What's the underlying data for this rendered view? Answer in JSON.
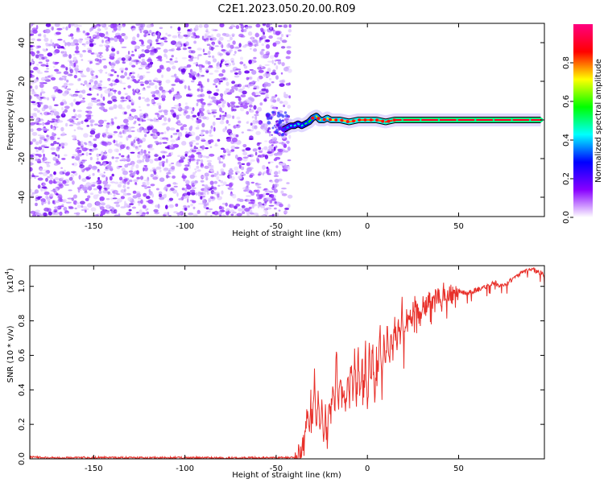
{
  "title": "C2E1.2023.050.20.00.R09",
  "chart_data": [
    {
      "type": "heatmap",
      "xlabel": "Height of straight line (km)",
      "ylabel": "Frequency (Hz)",
      "xlim": [
        -185,
        97
      ],
      "ylim": [
        -50,
        50
      ],
      "xticks": [
        -150,
        -100,
        -50,
        0,
        50
      ],
      "yticks": [
        -40,
        -20,
        0,
        20,
        40
      ],
      "colorbar": {
        "label": "Normalized spectral amplitude",
        "range": [
          0,
          1
        ],
        "ticks": [
          "0.0",
          "0.2",
          "0.4",
          "0.6",
          "0.8"
        ],
        "colors": [
          "#ffffff",
          "#8800ff",
          "#0000ff",
          "#00ffff",
          "#00ff00",
          "#ffff00",
          "#ff0000",
          "#ff0080"
        ]
      },
      "noise_region_x": [
        -185,
        -45
      ],
      "signal_trace": {
        "x": [
          -46,
          -44,
          -42,
          -40,
          -38,
          -36,
          -34,
          -32,
          -30,
          -28,
          -26,
          -24,
          -22,
          -20,
          -15,
          -10,
          -5,
          0,
          5,
          10,
          15,
          20,
          30,
          40,
          50,
          60,
          70,
          80,
          90,
          95
        ],
        "y": [
          -5,
          -4,
          -3,
          -3,
          -2,
          -3,
          -2,
          -1,
          1,
          2,
          0,
          0,
          1,
          0,
          0,
          -1,
          0,
          0,
          0,
          -1,
          0,
          0,
          0,
          0,
          0,
          0,
          0,
          0,
          0,
          0
        ],
        "amplitude": [
          0.3,
          0.35,
          0.4,
          0.45,
          0.45,
          0.45,
          0.5,
          0.55,
          0.6,
          0.65,
          0.65,
          0.7,
          0.7,
          0.7,
          0.75,
          0.75,
          0.8,
          0.8,
          0.8,
          0.8,
          0.85,
          0.9,
          0.9,
          0.9,
          0.9,
          0.9,
          0.9,
          0.9,
          0.9,
          0.9
        ]
      }
    },
    {
      "type": "line",
      "xlabel": "Height of straight line (km)",
      "ylabel": "SNR (10 * v/v)",
      "yscale_label": "(x10",
      "yscale_exp": "4",
      "yscale_close": ")",
      "xlim": [
        -185,
        97
      ],
      "ylim": [
        0,
        1.12
      ],
      "xticks": [
        -150,
        -100,
        -50,
        0,
        50
      ],
      "yticks": [
        "0.0",
        "0.2",
        "0.4",
        "0.6",
        "0.8",
        "1.0"
      ],
      "series": [
        {
          "color": "#e8302a",
          "x": [
            -185,
            -170,
            -150,
            -120,
            -100,
            -80,
            -60,
            -45,
            -40,
            -37,
            -35,
            -33,
            -32,
            -31,
            -30,
            -29,
            -28,
            -27,
            -26,
            -25,
            -24,
            -23,
            -22,
            -21,
            -20,
            -19,
            -18,
            -17,
            -16,
            -15,
            -14,
            -13,
            -12,
            -11,
            -10,
            -9,
            -8,
            -7,
            -6,
            -5,
            -4,
            -3,
            -2,
            -1,
            0,
            1,
            2,
            3,
            4,
            5,
            6,
            7,
            8,
            9,
            10,
            11,
            12,
            13,
            14,
            15,
            16,
            17,
            18,
            19,
            20,
            22,
            24,
            26,
            28,
            30,
            32,
            34,
            36,
            38,
            40,
            42,
            44,
            46,
            48,
            50,
            55,
            60,
            65,
            70,
            75,
            80,
            85,
            90,
            95,
            97
          ],
          "y": [
            0.01,
            0.005,
            0.008,
            0.006,
            0.007,
            0.005,
            0.006,
            0.007,
            0.01,
            0.03,
            0.08,
            0.25,
            0.15,
            0.35,
            0.2,
            0.5,
            0.18,
            0.4,
            0.12,
            0.3,
            0.15,
            0.28,
            0.1,
            0.33,
            0.25,
            0.42,
            0.3,
            0.65,
            0.28,
            0.5,
            0.35,
            0.43,
            0.25,
            0.45,
            0.4,
            0.55,
            0.38,
            0.6,
            0.33,
            0.62,
            0.42,
            0.58,
            0.36,
            0.68,
            0.3,
            0.62,
            0.45,
            0.7,
            0.35,
            0.6,
            0.5,
            0.75,
            0.4,
            0.72,
            0.5,
            0.8,
            0.55,
            0.7,
            0.6,
            0.85,
            0.62,
            0.82,
            0.7,
            0.9,
            0.68,
            0.88,
            0.78,
            0.92,
            0.82,
            0.9,
            0.88,
            0.95,
            0.9,
            0.94,
            0.93,
            0.97,
            0.92,
            0.96,
            0.95,
            0.97,
            0.96,
            0.98,
            1.0,
            1.02,
            1.0,
            1.05,
            1.08,
            1.1,
            1.08,
            1.06
          ]
        }
      ]
    }
  ]
}
